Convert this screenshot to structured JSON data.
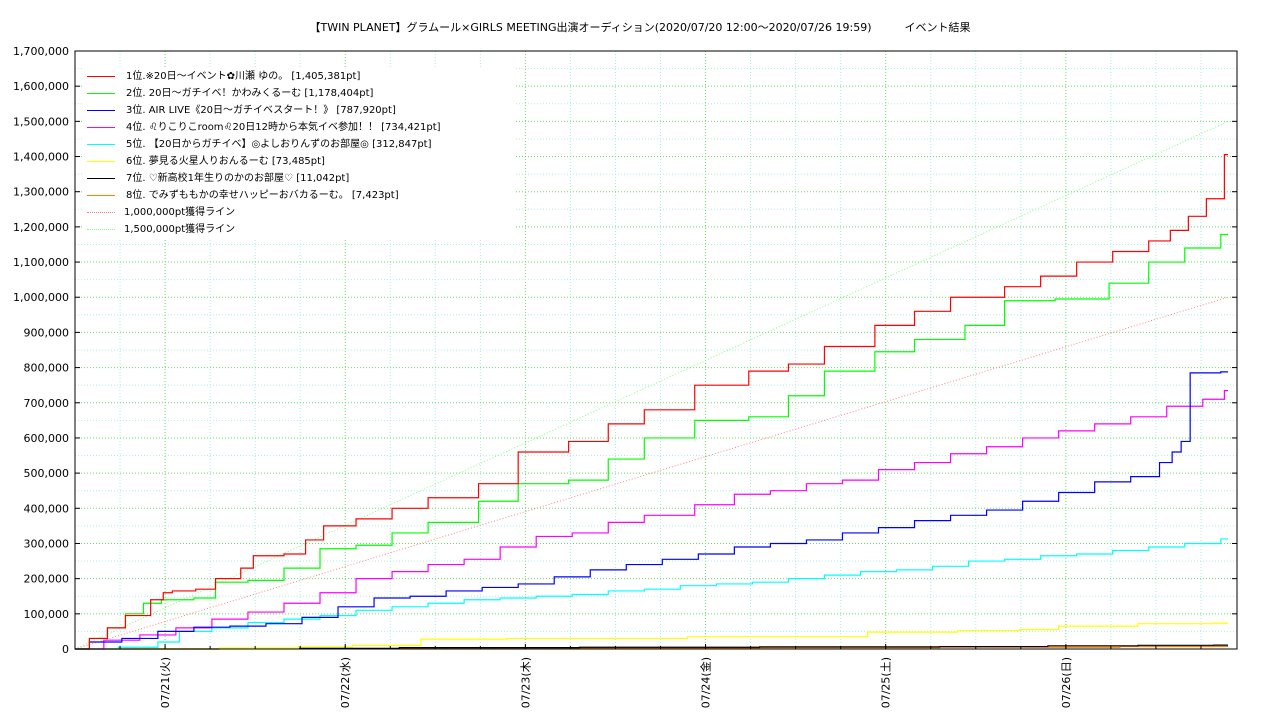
{
  "chart_data": {
    "type": "line",
    "title": "【TWIN PLANET】グラムール×GIRLS MEETING出演オーディション(2020/07/20 12:00〜2020/07/26 19:59)　　　イベント結果",
    "xlabel": "",
    "ylabel": "",
    "x_tick_labels": [
      "07/21(火)",
      "07/22(水)",
      "07/23(木)",
      "07/24(金)",
      "07/25(土)",
      "07/26(日)"
    ],
    "x_ticks_day": [
      0.5,
      1.5,
      2.5,
      3.5,
      4.5,
      5.5
    ],
    "xlim_day": [
      0,
      6.45
    ],
    "ylim": [
      0,
      1700000
    ],
    "y_tick_values": [
      0,
      100000,
      200000,
      300000,
      400000,
      500000,
      600000,
      700000,
      800000,
      900000,
      1000000,
      1100000,
      1200000,
      1300000,
      1400000,
      1500000,
      1600000,
      1700000
    ],
    "y_tick_labels": [
      "0",
      "100,000",
      "200,000",
      "300,000",
      "400,000",
      "500,000",
      "600,000",
      "700,000",
      "800,000",
      "900,000",
      "1,000,000",
      "1,100,000",
      "1,200,000",
      "1,300,000",
      "1,400,000",
      "1,500,000",
      "1,600,000",
      "1,700,000"
    ],
    "grid": true,
    "legend_position": "top-left",
    "series": [
      {
        "name": "1位.※20日〜イベント✿川瀬 ゆの。 [1,405,381pt]",
        "color": "#ff0000",
        "x": [
          0,
          0.1,
          0.2,
          0.3,
          0.45,
          0.5,
          0.55,
          0.7,
          0.8,
          0.95,
          1.0,
          1.2,
          1.3,
          1.4,
          1.6,
          1.8,
          2.0,
          2.3,
          2.5,
          2.8,
          3.0,
          3.2,
          3.5,
          3.8,
          4.0,
          4.2,
          4.5,
          4.7,
          4.9,
          5.0,
          5.2,
          5.4,
          5.6,
          5.8,
          6.0,
          6.1,
          6.2,
          6.3,
          6.4
        ],
        "values": [
          0,
          30000,
          60000,
          95000,
          140000,
          160000,
          165000,
          170000,
          200000,
          230000,
          265000,
          270000,
          310000,
          350000,
          370000,
          400000,
          430000,
          470000,
          560000,
          590000,
          640000,
          680000,
          750000,
          790000,
          810000,
          860000,
          920000,
          960000,
          1000000,
          1000000,
          1030000,
          1060000,
          1100000,
          1130000,
          1160000,
          1190000,
          1230000,
          1280000,
          1405381
        ]
      },
      {
        "name": "2位. 20日〜ガチイベ！かわみくるーむ [1,178,404pt]",
        "color": "#00ff00",
        "x": [
          0,
          0.1,
          0.2,
          0.3,
          0.4,
          0.5,
          0.7,
          0.8,
          1.0,
          1.2,
          1.4,
          1.6,
          1.8,
          2.0,
          2.3,
          2.5,
          2.8,
          3.0,
          3.2,
          3.5,
          3.8,
          4.0,
          4.2,
          4.5,
          4.7,
          5.0,
          5.2,
          5.5,
          5.8,
          6.0,
          6.2,
          6.4
        ],
        "values": [
          0,
          30000,
          60000,
          100000,
          130000,
          140000,
          145000,
          190000,
          195000,
          230000,
          285000,
          295000,
          330000,
          360000,
          420000,
          470000,
          480000,
          540000,
          600000,
          650000,
          660000,
          720000,
          790000,
          845000,
          880000,
          920000,
          990000,
          995000,
          1040000,
          1100000,
          1140000,
          1178404
        ]
      },
      {
        "name": "3位. AIR LIVE《20日〜ガチイベスタート！》 [787,920pt]",
        "color": "#0000ff",
        "x": [
          0,
          0.1,
          0.3,
          0.5,
          0.7,
          0.9,
          1.1,
          1.3,
          1.5,
          1.7,
          1.9,
          2.1,
          2.3,
          2.5,
          2.7,
          2.9,
          3.1,
          3.3,
          3.5,
          3.7,
          3.9,
          4.1,
          4.3,
          4.5,
          4.7,
          4.9,
          5.1,
          5.3,
          5.5,
          5.7,
          5.9,
          6.05,
          6.1,
          6.15,
          6.2,
          6.4
        ],
        "values": [
          0,
          20000,
          30000,
          50000,
          62000,
          65000,
          72000,
          90000,
          120000,
          145000,
          150000,
          165000,
          175000,
          185000,
          205000,
          225000,
          240000,
          255000,
          270000,
          290000,
          300000,
          310000,
          330000,
          345000,
          365000,
          380000,
          395000,
          420000,
          445000,
          475000,
          490000,
          530000,
          560000,
          590000,
          785000,
          787920
        ]
      },
      {
        "name": "4位. ♌りこりこroom♌20日12時から本気イベ参加！！ [734,421pt]",
        "color": "#ff00ff",
        "x": [
          0,
          0.2,
          0.4,
          0.6,
          0.8,
          1.0,
          1.2,
          1.4,
          1.6,
          1.8,
          2.0,
          2.2,
          2.4,
          2.6,
          2.8,
          3.0,
          3.2,
          3.5,
          3.7,
          3.9,
          4.1,
          4.3,
          4.5,
          4.7,
          4.9,
          5.1,
          5.3,
          5.5,
          5.7,
          5.9,
          6.1,
          6.3,
          6.4
        ],
        "values": [
          0,
          25000,
          40000,
          60000,
          85000,
          105000,
          130000,
          160000,
          200000,
          220000,
          240000,
          255000,
          290000,
          320000,
          330000,
          360000,
          380000,
          410000,
          440000,
          450000,
          470000,
          480000,
          510000,
          530000,
          555000,
          575000,
          600000,
          620000,
          640000,
          660000,
          690000,
          710000,
          734421
        ]
      },
      {
        "name": "5位. 【20日からガチイベ】◎よしおりんずのお部屋◎ [312,847pt]",
        "color": "#00ffff",
        "x": [
          0,
          0.3,
          0.5,
          0.6,
          0.8,
          1.0,
          1.2,
          1.4,
          1.6,
          1.8,
          2.0,
          2.2,
          2.4,
          2.6,
          2.8,
          3.0,
          3.2,
          3.4,
          3.6,
          3.8,
          4.0,
          4.2,
          4.4,
          4.6,
          4.8,
          5.0,
          5.2,
          5.4,
          5.6,
          5.8,
          6.0,
          6.2,
          6.4
        ],
        "values": [
          0,
          5000,
          20000,
          50000,
          60000,
          75000,
          85000,
          95000,
          110000,
          120000,
          130000,
          140000,
          145000,
          150000,
          155000,
          165000,
          170000,
          180000,
          185000,
          190000,
          200000,
          210000,
          220000,
          225000,
          235000,
          250000,
          255000,
          265000,
          270000,
          280000,
          290000,
          300000,
          312847
        ]
      },
      {
        "name": "6位. 夢見る火星人りおんるーむ [73,485pt]",
        "color": "#ffff00",
        "x": [
          0,
          1.0,
          1.3,
          1.6,
          2.0,
          2.5,
          3.0,
          3.5,
          4.0,
          4.5,
          5.0,
          5.3,
          5.5,
          6.0,
          6.4
        ],
        "values": [
          0,
          3000,
          6000,
          10000,
          28000,
          30000,
          30000,
          35000,
          35000,
          48000,
          52000,
          55000,
          65000,
          72000,
          73485
        ]
      },
      {
        "name": "7位. ♡新高校1年生りのかのお部屋♡ [11,042pt]",
        "color": "#000000",
        "x": [
          0,
          1.0,
          2.0,
          3.0,
          4.0,
          5.0,
          5.5,
          6.0,
          6.4
        ],
        "values": [
          0,
          2000,
          4000,
          5000,
          6000,
          7000,
          9000,
          10500,
          11042
        ]
      },
      {
        "name": "8位. でみずももかの幸せハッピーおバカるーむ。 [7,423pt]",
        "color": "#ff8000",
        "x": [
          0,
          1.0,
          2.0,
          3.0,
          4.0,
          5.0,
          6.0,
          6.4
        ],
        "values": [
          0,
          1000,
          2000,
          3000,
          4000,
          5000,
          7000,
          7423
        ]
      }
    ],
    "reference_lines": [
      {
        "name": "1,000,000pt獲得ライン",
        "color": "#ff8080",
        "style": "dotted",
        "x": [
          0,
          6.4
        ],
        "values": [
          0,
          1000000
        ]
      },
      {
        "name": "1,500,000pt獲得ライン",
        "color": "#80ff80",
        "style": "dotted",
        "x": [
          0,
          6.4
        ],
        "values": [
          0,
          1500000
        ]
      }
    ]
  }
}
